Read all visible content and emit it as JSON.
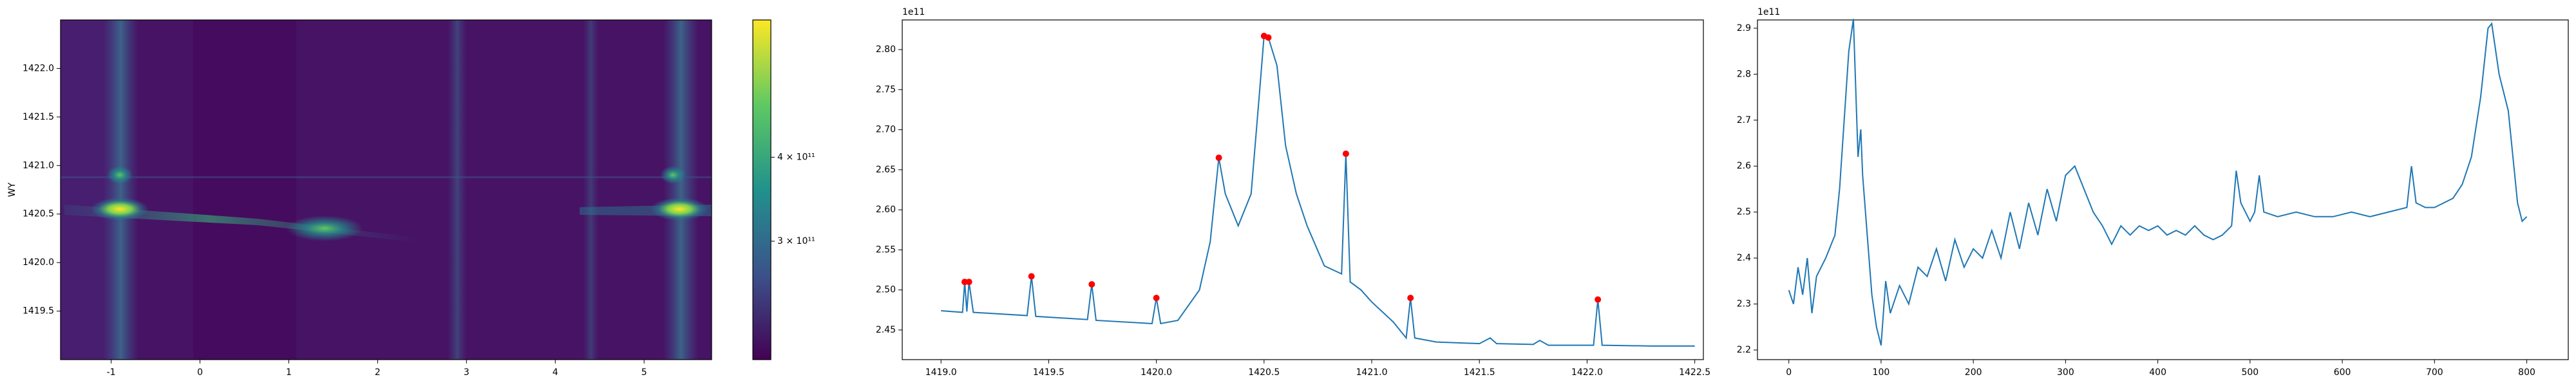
{
  "chart_data": [
    {
      "type": "heatmap",
      "ylabel": "WY",
      "xlim": [
        -1.57,
        5.76
      ],
      "xticks": [
        -1,
        0,
        1,
        2,
        3,
        4,
        5
      ],
      "ylim": [
        1419.0,
        1422.5
      ],
      "yticks": [
        1419.5,
        {
          "value": 1420,
          "label": "1420.0"
        },
        1420.5,
        {
          "value": 1421,
          "label": "1421.0"
        },
        1421.5,
        {
          "value": 1422,
          "label": "1422.0"
        }
      ],
      "colorbar": {
        "log": true,
        "lim": [
          200000000000,
          640000000000
        ],
        "ticks": [
          {
            "value": 300000000000,
            "label": "3 × 10¹¹"
          },
          {
            "value": 400000000000,
            "label": "4 × 10¹¹"
          }
        ]
      }
    },
    {
      "type": "line",
      "y_offset_label": "1e11",
      "xlim": [
        1418.82,
        1422.54
      ],
      "xticks": [
        {
          "value": 1419,
          "label": "1419.0"
        },
        1419.5,
        {
          "value": 1420,
          "label": "1420.0"
        },
        1420.5,
        {
          "value": 1421,
          "label": "1421.0"
        },
        1421.5,
        {
          "value": 1422,
          "label": "1422.0"
        },
        1422.5
      ],
      "ylim": [
        2.413,
        2.837
      ],
      "yticks": [
        2.45,
        {
          "value": 2.5,
          "label": "2.50"
        },
        2.55,
        {
          "value": 2.6,
          "label": "2.60"
        },
        2.65,
        {
          "value": 2.7,
          "label": "2.70"
        },
        2.75,
        {
          "value": 2.8,
          "label": "2.80"
        }
      ],
      "series": [
        {
          "color": "#1f77b4",
          "x": [
            1419.0,
            1419.1,
            1419.11,
            1419.12,
            1419.13,
            1419.15,
            1419.4,
            1419.42,
            1419.44,
            1419.68,
            1419.7,
            1419.72,
            1419.98,
            1420.0,
            1420.02,
            1420.1,
            1420.2,
            1420.25,
            1420.29,
            1420.32,
            1420.38,
            1420.44,
            1420.48,
            1420.5,
            1420.52,
            1420.56,
            1420.6,
            1420.65,
            1420.7,
            1420.78,
            1420.86,
            1420.88,
            1420.9,
            1420.95,
            1421.0,
            1421.1,
            1421.16,
            1421.18,
            1421.2,
            1421.3,
            1421.5,
            1421.55,
            1421.58,
            1421.75,
            1421.78,
            1421.82,
            1422.03,
            1422.05,
            1422.07,
            1422.3,
            1422.5
          ],
          "values": [
            2.474,
            2.472,
            2.51,
            2.473,
            2.51,
            2.472,
            2.468,
            2.517,
            2.467,
            2.463,
            2.507,
            2.462,
            2.458,
            2.49,
            2.458,
            2.462,
            2.5,
            2.56,
            2.665,
            2.62,
            2.58,
            2.62,
            2.75,
            2.817,
            2.815,
            2.78,
            2.68,
            2.62,
            2.58,
            2.53,
            2.52,
            2.67,
            2.51,
            2.5,
            2.485,
            2.46,
            2.44,
            2.49,
            2.44,
            2.435,
            2.433,
            2.44,
            2.433,
            2.432,
            2.437,
            2.431,
            2.431,
            2.488,
            2.431,
            2.43,
            2.43
          ]
        },
        {
          "color": "#ff0000",
          "marker": "o",
          "x": [
            1419.11,
            1419.13,
            1419.42,
            1419.7,
            1420.0,
            1420.29,
            1420.5,
            1420.52,
            1420.88,
            1421.18,
            1422.05
          ],
          "values": [
            2.51,
            2.51,
            2.517,
            2.507,
            2.49,
            2.665,
            2.817,
            2.815,
            2.67,
            2.49,
            2.488
          ]
        }
      ]
    },
    {
      "type": "line",
      "y_offset_label": "1e11",
      "xlim": [
        -34,
        845
      ],
      "xticks": [
        0,
        100,
        200,
        300,
        400,
        500,
        600,
        700,
        800
      ],
      "ylim": [
        2.179,
        2.918
      ],
      "yticks": [
        2.2,
        2.3,
        2.4,
        2.5,
        2.6,
        2.7,
        2.8,
        2.9
      ],
      "series": [
        {
          "color": "#1f77b4",
          "x": [
            0,
            5,
            10,
            15,
            20,
            25,
            30,
            40,
            50,
            55,
            60,
            65,
            70,
            72,
            75,
            78,
            80,
            85,
            90,
            95,
            100,
            105,
            110,
            120,
            130,
            140,
            150,
            160,
            170,
            180,
            190,
            200,
            210,
            220,
            230,
            240,
            250,
            260,
            270,
            280,
            290,
            300,
            310,
            320,
            330,
            340,
            350,
            360,
            370,
            380,
            390,
            400,
            410,
            420,
            430,
            440,
            450,
            460,
            470,
            480,
            485,
            490,
            500,
            505,
            510,
            515,
            530,
            550,
            570,
            590,
            610,
            630,
            650,
            670,
            675,
            680,
            690,
            700,
            710,
            720,
            730,
            740,
            750,
            758,
            762,
            770,
            780,
            785,
            790,
            795,
            800
          ],
          "values": [
            2.33,
            2.3,
            2.38,
            2.32,
            2.4,
            2.28,
            2.36,
            2.4,
            2.45,
            2.55,
            2.7,
            2.85,
            2.92,
            2.8,
            2.62,
            2.68,
            2.58,
            2.45,
            2.32,
            2.25,
            2.21,
            2.35,
            2.28,
            2.34,
            2.3,
            2.38,
            2.36,
            2.42,
            2.35,
            2.44,
            2.38,
            2.42,
            2.4,
            2.46,
            2.4,
            2.5,
            2.42,
            2.52,
            2.45,
            2.55,
            2.48,
            2.58,
            2.6,
            2.55,
            2.5,
            2.47,
            2.43,
            2.47,
            2.45,
            2.47,
            2.46,
            2.47,
            2.45,
            2.46,
            2.45,
            2.47,
            2.45,
            2.44,
            2.45,
            2.47,
            2.59,
            2.52,
            2.48,
            2.5,
            2.58,
            2.5,
            2.49,
            2.5,
            2.49,
            2.49,
            2.5,
            2.49,
            2.5,
            2.51,
            2.6,
            2.52,
            2.51,
            2.51,
            2.52,
            2.53,
            2.56,
            2.62,
            2.75,
            2.9,
            2.91,
            2.8,
            2.72,
            2.62,
            2.52,
            2.48,
            2.49
          ]
        }
      ]
    }
  ]
}
